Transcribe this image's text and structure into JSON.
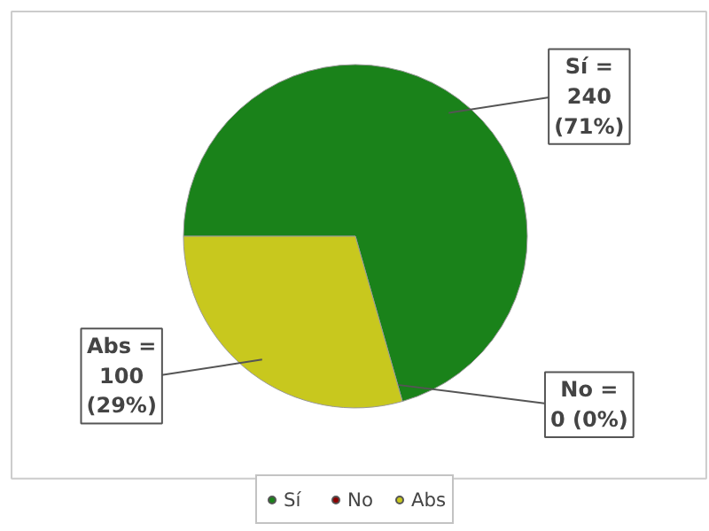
{
  "chart_data": {
    "type": "pie",
    "categories": [
      "Sí",
      "No",
      "Abs"
    ],
    "values": [
      240,
      0,
      100
    ],
    "colors": [
      "#1a821a",
      "#8b0000",
      "#c8c81e"
    ],
    "value_labels": [
      "Sí =\n240\n(71%)",
      "No =\n0 (0%)",
      "Abs =\n100\n(29%)"
    ],
    "legend": "bottom"
  }
}
